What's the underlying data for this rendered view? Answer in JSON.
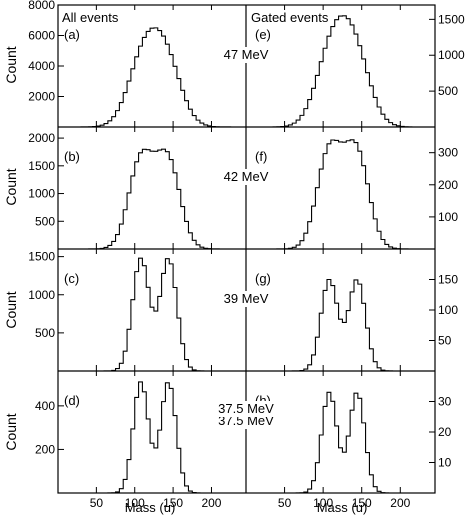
{
  "figure": {
    "left_header": "All events",
    "right_header": "Gated events",
    "y_label": "Count",
    "x_label": "Mass (u)"
  },
  "chart_data": [
    {
      "type": "histogram",
      "panel_label": "(a)",
      "energy_label": "47 MeV",
      "side": "left",
      "xlim": [
        0,
        245
      ],
      "ylim": [
        0,
        8000
      ],
      "yticks": [
        0,
        2000,
        4000,
        6000,
        8000
      ],
      "shape": {
        "peaks": [
          [
            111,
            20,
            1.0
          ],
          [
            140,
            20,
            1.0
          ]
        ],
        "peak_value": 6500,
        "bin_width": 5,
        "range": [
          20,
          230
        ]
      }
    },
    {
      "type": "histogram",
      "panel_label": "(b)",
      "energy_label": "42 MeV",
      "side": "left",
      "xlim": [
        0,
        245
      ],
      "ylim": [
        0,
        2200
      ],
      "yticks": [
        0,
        500,
        1000,
        1500,
        2000
      ],
      "shape": {
        "peaks": [
          [
            108,
            16,
            1.0
          ],
          [
            143,
            16,
            1.0
          ]
        ],
        "peak_value": 1800,
        "bin_width": 5,
        "range": [
          20,
          230
        ]
      }
    },
    {
      "type": "histogram",
      "panel_label": "(c)",
      "energy_label": "39 MeV",
      "side": "left",
      "xlim": [
        0,
        245
      ],
      "ylim": [
        0,
        1600
      ],
      "yticks": [
        0,
        500,
        1000,
        1500
      ],
      "shape": {
        "peaks": [
          [
            108,
            11,
            1.0
          ],
          [
            144,
            11,
            1.0
          ]
        ],
        "peak_value": 1480,
        "bin_width": 5,
        "range": [
          20,
          230
        ]
      }
    },
    {
      "type": "histogram",
      "panel_label": "(d)",
      "energy_label": "37.5 MeV",
      "side": "left",
      "xlim": [
        0,
        245
      ],
      "ylim": [
        0,
        560
      ],
      "yticks": [
        0,
        200,
        400
      ],
      "shape": {
        "peaks": [
          [
            108,
            10,
            1.0
          ],
          [
            144,
            10,
            1.0
          ]
        ],
        "peak_value": 510,
        "bin_width": 5,
        "range": [
          20,
          230
        ]
      }
    },
    {
      "type": "histogram",
      "panel_label": "(e)",
      "energy_label": "47 MeV",
      "side": "right",
      "xlim": [
        0,
        245
      ],
      "ylim": [
        0,
        1700
      ],
      "yticks": [
        0,
        500,
        1000,
        1500
      ],
      "shape": {
        "peaks": [
          [
            111,
            20,
            1.0
          ],
          [
            140,
            20,
            1.0
          ]
        ],
        "peak_value": 1550,
        "bin_width": 5,
        "range": [
          35,
          215
        ]
      }
    },
    {
      "type": "histogram",
      "panel_label": "(f)",
      "energy_label": "42 MeV",
      "side": "right",
      "xlim": [
        0,
        245
      ],
      "ylim": [
        0,
        380
      ],
      "yticks": [
        0,
        100,
        200,
        300
      ],
      "shape": {
        "peaks": [
          [
            108,
            16,
            1.0
          ],
          [
            143,
            16,
            1.0
          ]
        ],
        "peak_value": 340,
        "bin_width": 5,
        "range": [
          35,
          215
        ]
      }
    },
    {
      "type": "histogram",
      "panel_label": "(g)",
      "energy_label": "39 MeV",
      "side": "right",
      "xlim": [
        0,
        245
      ],
      "ylim": [
        0,
        200
      ],
      "yticks": [
        0,
        50,
        100,
        150
      ],
      "shape": {
        "peaks": [
          [
            108,
            11,
            1.0
          ],
          [
            144,
            11,
            1.0
          ]
        ],
        "peak_value": 150,
        "bin_width": 5,
        "range": [
          35,
          215
        ]
      }
    },
    {
      "type": "histogram",
      "panel_label": "(h)",
      "energy_label": "",
      "side": "right",
      "xlim": [
        0,
        245
      ],
      "ylim": [
        0,
        40
      ],
      "yticks": [
        0,
        10,
        20,
        30
      ],
      "shape": {
        "peaks": [
          [
            108,
            10,
            1.0
          ],
          [
            144,
            10,
            1.0
          ]
        ],
        "peak_value": 33,
        "bin_width": 5,
        "range": [
          35,
          215
        ]
      }
    }
  ],
  "x_axis": {
    "ticks": [
      50,
      100,
      150,
      200
    ]
  },
  "extra_energy_label": "37.5 MeV"
}
